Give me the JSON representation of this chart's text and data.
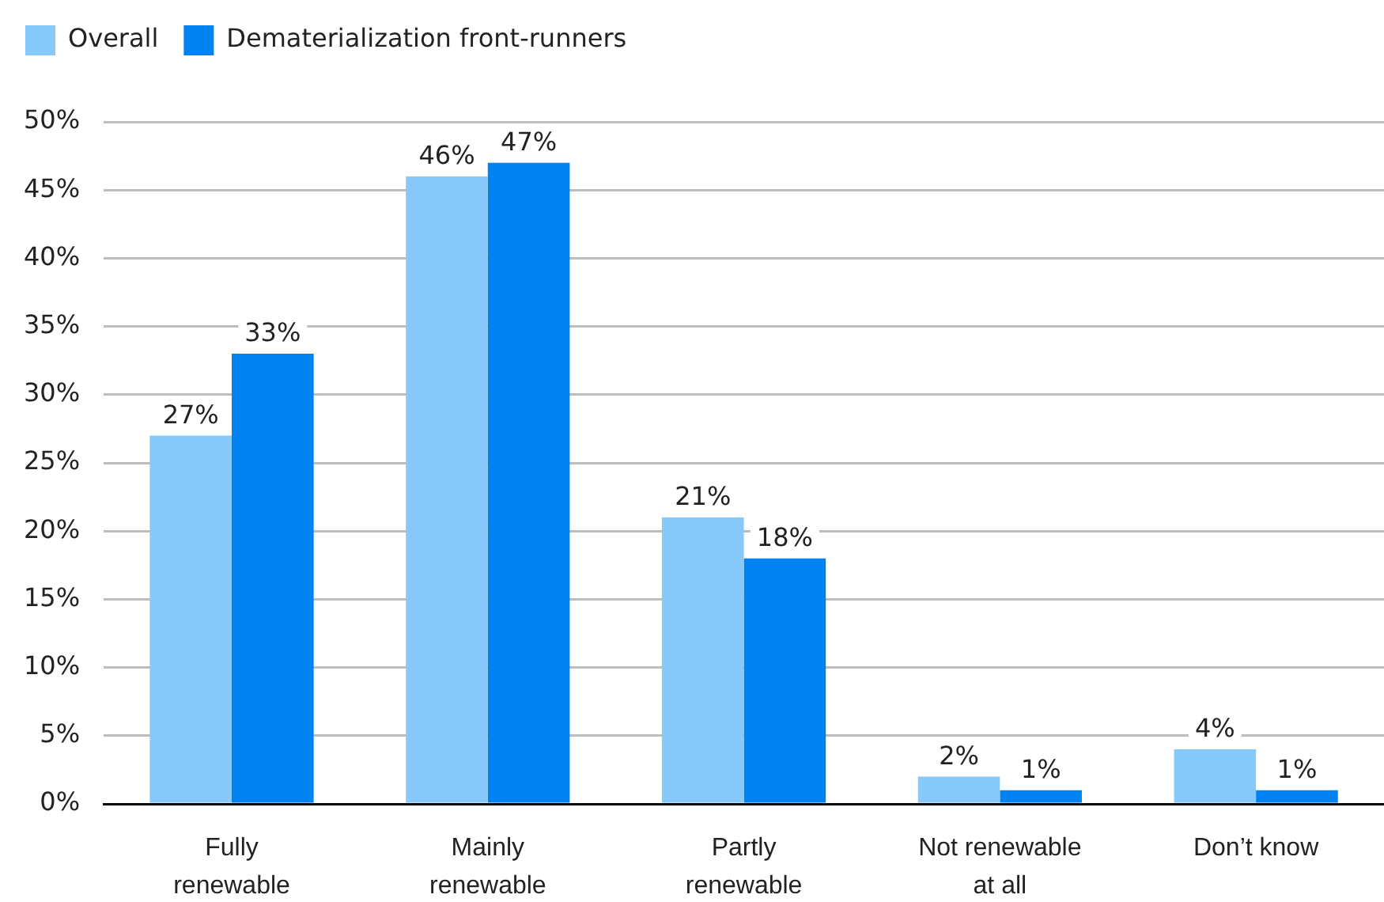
{
  "chart_data": {
    "type": "bar",
    "categories": [
      "Fully renewable",
      "Mainly renewable",
      "Partly renewable",
      "Not renewable at all",
      "Don’t know"
    ],
    "series": [
      {
        "name": "Overall",
        "color": "#87c9fb",
        "values": [
          27,
          46,
          21,
          2,
          4
        ],
        "value_labels": [
          "27%",
          "46%",
          "21%",
          "2%",
          "4%"
        ]
      },
      {
        "name": "Dematerialization front-runners",
        "color": "#0082f0",
        "values": [
          33,
          47,
          18,
          1,
          1
        ],
        "value_labels": [
          "33%",
          "47%",
          "18%",
          "1%",
          "1%"
        ]
      }
    ],
    "ylim": [
      0,
      50
    ],
    "yticks": [
      {
        "value": 0,
        "label": "0%"
      },
      {
        "value": 5,
        "label": "5%"
      },
      {
        "value": 10,
        "label": "10%"
      },
      {
        "value": 15,
        "label": "15%"
      },
      {
        "value": 20,
        "label": "20%"
      },
      {
        "value": 25,
        "label": "25%"
      },
      {
        "value": 30,
        "label": "30%"
      },
      {
        "value": 35,
        "label": "35%"
      },
      {
        "value": 40,
        "label": "40%"
      },
      {
        "value": 45,
        "label": "45%"
      },
      {
        "value": 50,
        "label": "50%"
      }
    ],
    "grid": "y",
    "legend": "top left"
  }
}
